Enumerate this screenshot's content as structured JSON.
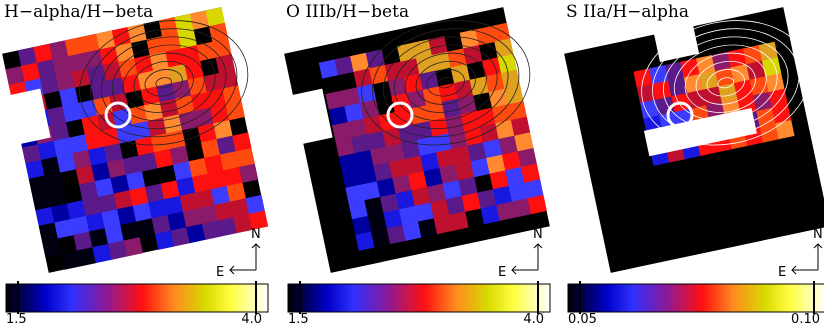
{
  "panels": [
    {
      "title": "H−alpha/H−beta",
      "colorbar": {
        "min_label": "1.5",
        "max_label": "4.0"
      },
      "compass": {
        "north": "N",
        "east": "E"
      }
    },
    {
      "title": "O IIIb/H−beta",
      "colorbar": {
        "min_label": "1.5",
        "max_label": "4.0"
      },
      "compass": {
        "north": "N",
        "east": "E"
      }
    },
    {
      "title": "S IIa/H−alpha",
      "colorbar": {
        "min_label": "0.05",
        "max_label": "0.10"
      },
      "compass": {
        "north": "N",
        "east": "E"
      }
    }
  ]
}
